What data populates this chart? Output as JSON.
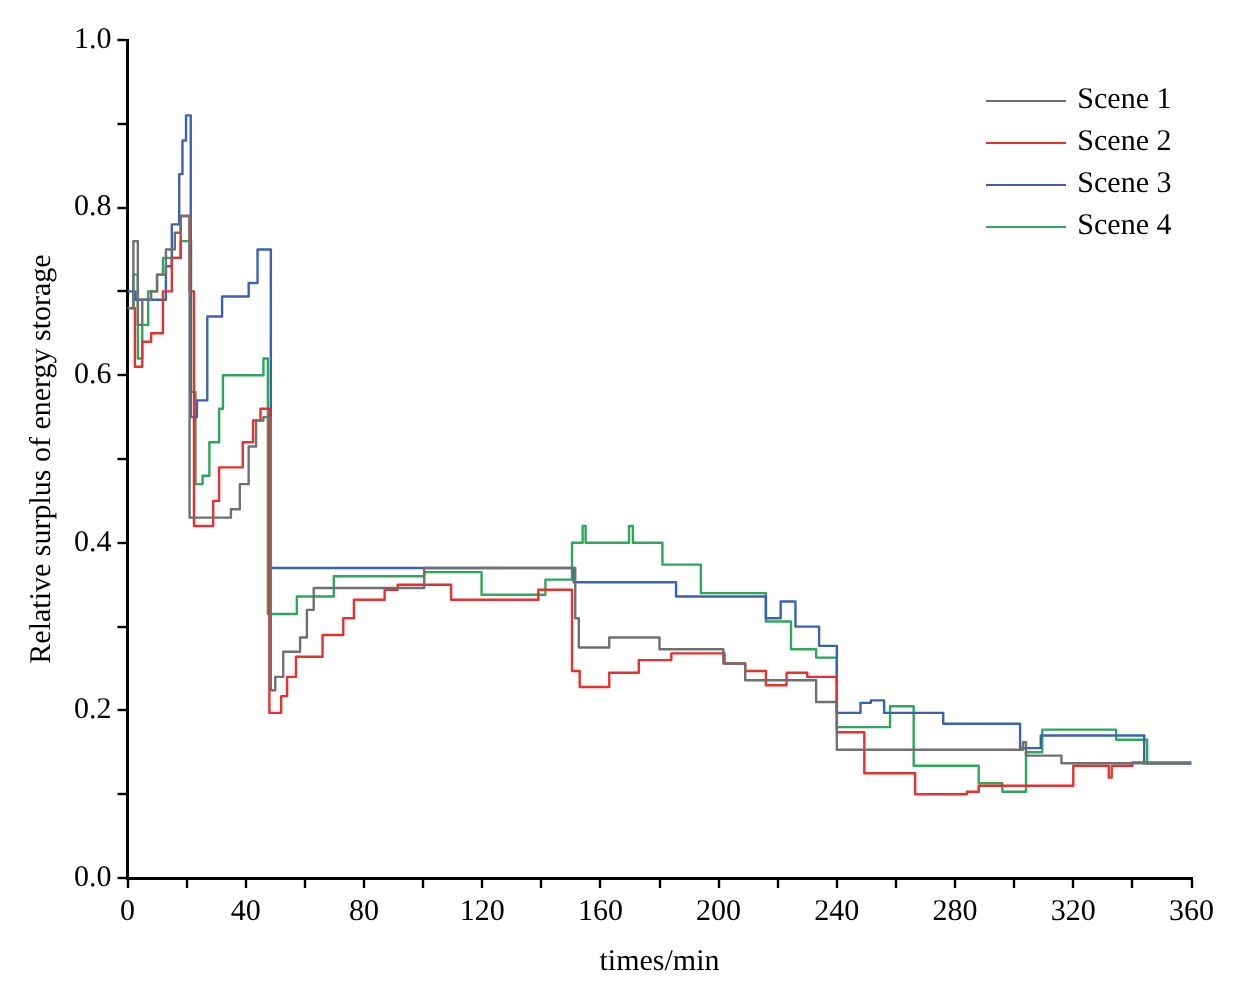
{
  "chart_data": {
    "type": "step",
    "xlabel": "times/min",
    "ylabel": "Relative surplus of energy storage",
    "xlim": [
      0,
      360
    ],
    "ylim": [
      0,
      1
    ],
    "xticks": [
      0,
      {
        "value": 20,
        "label": null
      },
      40,
      {
        "value": 60,
        "label": null
      },
      80,
      {
        "value": 100,
        "label": null
      },
      120,
      {
        "value": 140,
        "label": null
      },
      160,
      {
        "value": 180,
        "label": null
      },
      200,
      {
        "value": 220,
        "label": null
      },
      240,
      {
        "value": 260,
        "label": null
      },
      280,
      {
        "value": 300,
        "label": null
      },
      320,
      {
        "value": 340,
        "label": null
      },
      360
    ],
    "yticks": [
      {
        "value": 0,
        "label": "0.0"
      },
      {
        "value": 0.1,
        "label": null
      },
      0.2,
      {
        "value": 0.3,
        "label": null
      },
      0.4,
      {
        "value": 0.5,
        "label": null
      },
      0.6,
      {
        "value": 0.7,
        "label": null
      },
      0.8,
      {
        "value": 0.9,
        "label": null
      },
      {
        "value": 1,
        "label": "1.0"
      }
    ],
    "legend": "top right",
    "grid": false,
    "marker": "none",
    "line_style": "solid",
    "series": [
      {
        "name": "Scene 1",
        "color": "#707070",
        "x": [
          0,
          2,
          3.5,
          5,
          8,
          10,
          13,
          16,
          18,
          21,
          35,
          38,
          41,
          43.5,
          46,
          48.5,
          50,
          52.7,
          58.4,
          60.7,
          63,
          100.4,
          151.5,
          152.7,
          155,
          163,
          180,
          201.6,
          209,
          233,
          240,
          303,
          304,
          316,
          360
        ],
        "values": [
          0.68,
          0.76,
          0.66,
          0.69,
          0.7,
          0.72,
          0.75,
          0.77,
          0.79,
          0.43,
          0.44,
          0.47,
          0.515,
          0.546,
          0.55,
          0.224,
          0.24,
          0.27,
          0.287,
          0.32,
          0.346,
          0.37,
          0.31,
          0.275,
          0.275,
          0.287,
          0.273,
          0.256,
          0.236,
          0.21,
          0.153,
          0.162,
          0.146,
          0.137,
          0.137
        ]
      },
      {
        "name": "Scene 2",
        "color": "#e8312f",
        "x": [
          0,
          2.5,
          5,
          8,
          12,
          15,
          18,
          21,
          22.5,
          29,
          31,
          39,
          42.5,
          45,
          48,
          52,
          54,
          57,
          66,
          73,
          76.6,
          87,
          91.4,
          109.5,
          139,
          150.4,
          153,
          163,
          173,
          184,
          202,
          209,
          216,
          223,
          230,
          240,
          249.3,
          266.5,
          284,
          288,
          320,
          332,
          333,
          340,
          360
        ],
        "values": [
          0.68,
          0.61,
          0.64,
          0.65,
          0.7,
          0.74,
          0.79,
          0.7,
          0.42,
          0.45,
          0.49,
          0.52,
          0.546,
          0.56,
          0.197,
          0.217,
          0.24,
          0.264,
          0.29,
          0.31,
          0.332,
          0.344,
          0.35,
          0.332,
          0.344,
          0.247,
          0.228,
          0.245,
          0.26,
          0.268,
          0.256,
          0.247,
          0.23,
          0.245,
          0.24,
          0.174,
          0.125,
          0.1,
          0.103,
          0.11,
          0.134,
          0.12,
          0.134,
          0.138,
          0.138
        ]
      },
      {
        "name": "Scene 3",
        "color": "#3a62b0",
        "x": [
          0,
          2.7,
          13,
          15,
          17.5,
          18.6,
          19.8,
          21.4,
          23.5,
          27,
          32,
          41,
          44,
          46.4,
          48.5,
          151,
          185.6,
          216,
          221,
          226,
          234,
          240,
          248,
          251.5,
          256,
          276,
          302,
          309,
          344,
          360
        ],
        "values": [
          0.7,
          0.69,
          0.73,
          0.78,
          0.84,
          0.88,
          0.91,
          0.55,
          0.57,
          0.67,
          0.694,
          0.71,
          0.75,
          0.75,
          0.37,
          0.353,
          0.336,
          0.31,
          0.33,
          0.3,
          0.277,
          0.197,
          0.209,
          0.212,
          0.197,
          0.184,
          0.155,
          0.17,
          0.137,
          0.137
        ]
      },
      {
        "name": "Scene 4",
        "color": "#2da85a",
        "x": [
          0,
          2,
          3.5,
          5,
          7,
          10,
          12,
          18,
          21.5,
          23,
          25.4,
          27.7,
          31,
          32.3,
          46,
          47.5,
          57.3,
          69.8,
          100.4,
          119.8,
          141.4,
          150.4,
          154,
          155,
          169.7,
          171,
          181,
          194,
          216,
          224.5,
          233,
          240,
          258,
          266,
          288,
          296,
          304,
          309.5,
          334.5,
          345,
          360
        ],
        "values": [
          0.68,
          0.72,
          0.62,
          0.66,
          0.7,
          0.72,
          0.74,
          0.76,
          0.58,
          0.47,
          0.48,
          0.52,
          0.56,
          0.6,
          0.62,
          0.315,
          0.336,
          0.36,
          0.365,
          0.338,
          0.356,
          0.4,
          0.42,
          0.4,
          0.42,
          0.4,
          0.374,
          0.34,
          0.306,
          0.273,
          0.263,
          0.18,
          0.205,
          0.134,
          0.113,
          0.103,
          0.15,
          0.177,
          0.165,
          0.137,
          0.137
        ]
      }
    ]
  }
}
